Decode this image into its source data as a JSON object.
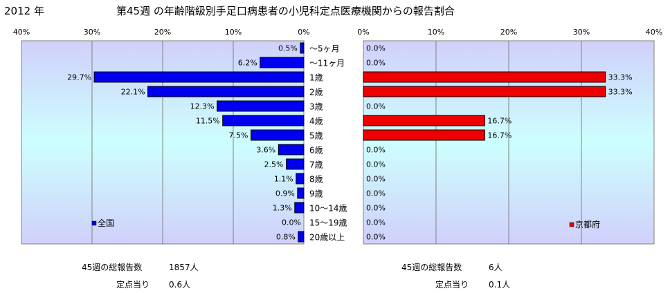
{
  "header": {
    "year": "2012 年",
    "title": "第45週 の年齢階級別手足口病患者の小児科定点医療機関からの報告割合"
  },
  "chart_data": [
    {
      "type": "bar",
      "orientation": "horizontal",
      "direction": "right-to-left",
      "legend": "全国",
      "legend_position": "bottom-left",
      "color": "#0000ee",
      "xlim": [
        0,
        40
      ],
      "ticks": [
        "40%",
        "30%",
        "20%",
        "10%",
        "0%"
      ],
      "tick_values": [
        40,
        30,
        20,
        10,
        0
      ],
      "grid": true,
      "categories": [
        "～5ヶ月",
        "～11ヶ月",
        "1歳",
        "2歳",
        "3歳",
        "4歳",
        "5歳",
        "6歳",
        "7歳",
        "8歳",
        "9歳",
        "10～14歳",
        "15～19歳",
        "20歳以上"
      ],
      "values": [
        0.5,
        6.2,
        29.7,
        22.1,
        12.3,
        11.5,
        7.5,
        3.6,
        2.5,
        1.1,
        0.9,
        1.3,
        0.0,
        0.8
      ],
      "labels": [
        "0.5%",
        "6.2%",
        "29.7%",
        "22.1%",
        "12.3%",
        "11.5%",
        "7.5%",
        "3.6%",
        "2.5%",
        "1.1%",
        "0.9%",
        "1.3%",
        "0.0%",
        "0.8%"
      ]
    },
    {
      "type": "bar",
      "orientation": "horizontal",
      "direction": "left-to-right",
      "legend": "京都府",
      "legend_position": "bottom-right",
      "color": "#ee0000",
      "xlim": [
        0,
        40
      ],
      "ticks": [
        "0%",
        "10%",
        "20%",
        "30%",
        "40%"
      ],
      "tick_values": [
        0,
        10,
        20,
        30,
        40
      ],
      "grid": true,
      "categories": [
        "～5ヶ月",
        "～11ヶ月",
        "1歳",
        "2歳",
        "3歳",
        "4歳",
        "5歳",
        "6歳",
        "7歳",
        "8歳",
        "9歳",
        "10～14歳",
        "15～19歳",
        "20歳以上"
      ],
      "values": [
        0.0,
        0.0,
        33.3,
        33.3,
        0.0,
        16.7,
        16.7,
        0.0,
        0.0,
        0.0,
        0.0,
        0.0,
        0.0,
        0.0
      ],
      "labels": [
        "0.0%",
        "0.0%",
        "33.3%",
        "33.3%",
        "0.0%",
        "16.7%",
        "16.7%",
        "0.0%",
        "0.0%",
        "0.0%",
        "0.0%",
        "0.0%",
        "0.0%",
        "0.0%"
      ]
    }
  ],
  "stats": {
    "national": {
      "total_label": "45週の総報告数",
      "total_value": "1857人",
      "per_site_label": "定点当り",
      "per_site_value": "0.6人"
    },
    "kyoto": {
      "total_label": "45週の総報告数",
      "total_value": "6人",
      "per_site_label": "定点当り",
      "per_site_value": "0.1人"
    }
  }
}
